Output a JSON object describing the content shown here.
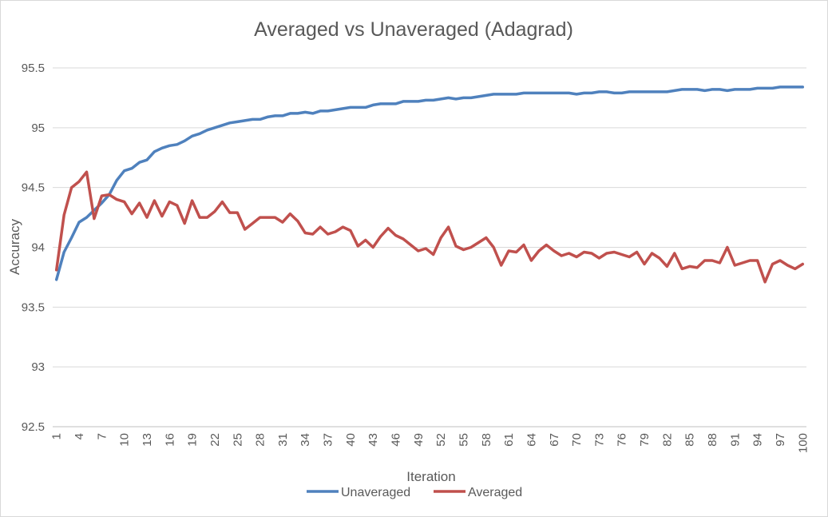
{
  "chart_data": {
    "type": "line",
    "title": "Averaged vs Unaveraged (Adagrad)",
    "xlabel": "Iteration",
    "ylabel": "Accuracy",
    "ylim": [
      92.5,
      95.5
    ],
    "y_ticks": [
      "92.5",
      "93",
      "93.5",
      "94",
      "94.5",
      "95",
      "95.5"
    ],
    "x": [
      1,
      2,
      3,
      4,
      5,
      6,
      7,
      8,
      9,
      10,
      11,
      12,
      13,
      14,
      15,
      16,
      17,
      18,
      19,
      20,
      21,
      22,
      23,
      24,
      25,
      26,
      27,
      28,
      29,
      30,
      31,
      32,
      33,
      34,
      35,
      36,
      37,
      38,
      39,
      40,
      41,
      42,
      43,
      44,
      45,
      46,
      47,
      48,
      49,
      50,
      51,
      52,
      53,
      54,
      55,
      56,
      57,
      58,
      59,
      60,
      61,
      62,
      63,
      64,
      65,
      66,
      67,
      68,
      69,
      70,
      71,
      72,
      73,
      74,
      75,
      76,
      77,
      78,
      79,
      80,
      81,
      82,
      83,
      84,
      85,
      86,
      87,
      88,
      89,
      90,
      91,
      92,
      93,
      94,
      95,
      96,
      97,
      98,
      99,
      100
    ],
    "x_tick_labels": [
      "1",
      "4",
      "7",
      "10",
      "13",
      "16",
      "19",
      "22",
      "25",
      "28",
      "31",
      "34",
      "37",
      "40",
      "43",
      "46",
      "49",
      "52",
      "55",
      "58",
      "61",
      "64",
      "67",
      "70",
      "73",
      "76",
      "79",
      "82",
      "85",
      "88",
      "91",
      "94",
      "97",
      "100"
    ],
    "grid": true,
    "legend_position": "bottom",
    "series": [
      {
        "name": "Unaveraged",
        "color": "#4f81bd",
        "values": [
          93.73,
          93.96,
          94.08,
          94.21,
          94.25,
          94.31,
          94.37,
          94.44,
          94.56,
          94.64,
          94.66,
          94.71,
          94.73,
          94.8,
          94.83,
          94.85,
          94.86,
          94.89,
          94.93,
          94.95,
          94.98,
          95.0,
          95.02,
          95.04,
          95.05,
          95.06,
          95.07,
          95.07,
          95.09,
          95.1,
          95.1,
          95.12,
          95.12,
          95.13,
          95.12,
          95.14,
          95.14,
          95.15,
          95.16,
          95.17,
          95.17,
          95.17,
          95.19,
          95.2,
          95.2,
          95.2,
          95.22,
          95.22,
          95.22,
          95.23,
          95.23,
          95.24,
          95.25,
          95.24,
          95.25,
          95.25,
          95.26,
          95.27,
          95.28,
          95.28,
          95.28,
          95.28,
          95.29,
          95.29,
          95.29,
          95.29,
          95.29,
          95.29,
          95.29,
          95.28,
          95.29,
          95.29,
          95.3,
          95.3,
          95.29,
          95.29,
          95.3,
          95.3,
          95.3,
          95.3,
          95.3,
          95.3,
          95.31,
          95.32,
          95.32,
          95.32,
          95.31,
          95.32,
          95.32,
          95.31,
          95.32,
          95.32,
          95.32,
          95.33,
          95.33,
          95.33,
          95.34,
          95.34,
          95.34,
          95.34
        ]
      },
      {
        "name": "Averaged",
        "color": "#c0504d",
        "values": [
          93.81,
          94.27,
          94.5,
          94.55,
          94.63,
          94.24,
          94.43,
          94.44,
          94.4,
          94.38,
          94.28,
          94.37,
          94.25,
          94.39,
          94.26,
          94.38,
          94.35,
          94.2,
          94.39,
          94.25,
          94.25,
          94.3,
          94.38,
          94.29,
          94.29,
          94.15,
          94.2,
          94.25,
          94.25,
          94.25,
          94.21,
          94.28,
          94.22,
          94.12,
          94.11,
          94.17,
          94.11,
          94.13,
          94.17,
          94.14,
          94.01,
          94.06,
          94.0,
          94.09,
          94.16,
          94.1,
          94.07,
          94.02,
          93.97,
          93.99,
          93.94,
          94.08,
          94.17,
          94.01,
          93.98,
          94.0,
          94.04,
          94.08,
          94.0,
          93.85,
          93.97,
          93.96,
          94.02,
          93.89,
          93.97,
          94.02,
          93.97,
          93.93,
          93.95,
          93.92,
          93.96,
          93.95,
          93.91,
          93.95,
          93.96,
          93.94,
          93.92,
          93.96,
          93.86,
          93.95,
          93.91,
          93.84,
          93.95,
          93.82,
          93.84,
          93.83,
          93.89,
          93.89,
          93.87,
          94.0,
          93.85,
          93.87,
          93.89,
          93.89,
          93.71,
          93.86,
          93.89,
          93.85,
          93.82,
          93.86
        ]
      }
    ]
  }
}
